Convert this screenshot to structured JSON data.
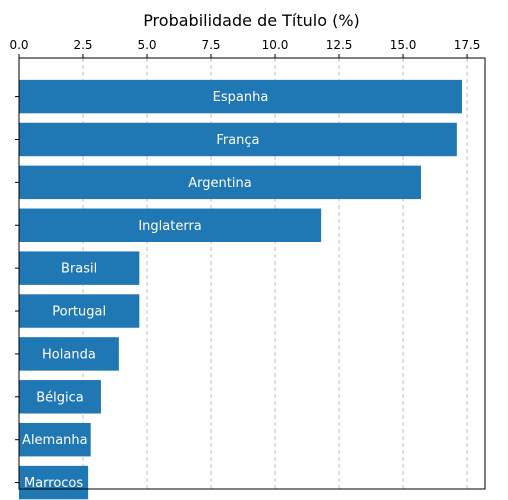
{
  "chart_data": {
    "type": "bar",
    "orientation": "horizontal",
    "title": "",
    "xlabel": "Probabilidade de Título (%)",
    "ylabel": "",
    "xaxis_position": "top",
    "xlim": [
      0,
      18.2
    ],
    "xticks": [
      0,
      2.5,
      5,
      7.5,
      10,
      12.5,
      15,
      17.5
    ],
    "xtick_labels": [
      "0.0",
      "2.5",
      "5.0",
      "7.5",
      "10.0",
      "12.5",
      "15.0",
      "17.5"
    ],
    "grid": {
      "x": true,
      "y": false,
      "style": "dashed"
    },
    "categories": [
      "Espanha",
      "França",
      "Argentina",
      "Inglaterra",
      "Brasil",
      "Portugal",
      "Holanda",
      "Bélgica",
      "Alemanha",
      "Marrocos"
    ],
    "values": [
      17.3,
      17.1,
      15.7,
      11.8,
      4.7,
      4.7,
      3.9,
      3.2,
      2.8,
      2.7
    ],
    "bar_color": "#1f77b4",
    "label_color": "#ffffff"
  }
}
